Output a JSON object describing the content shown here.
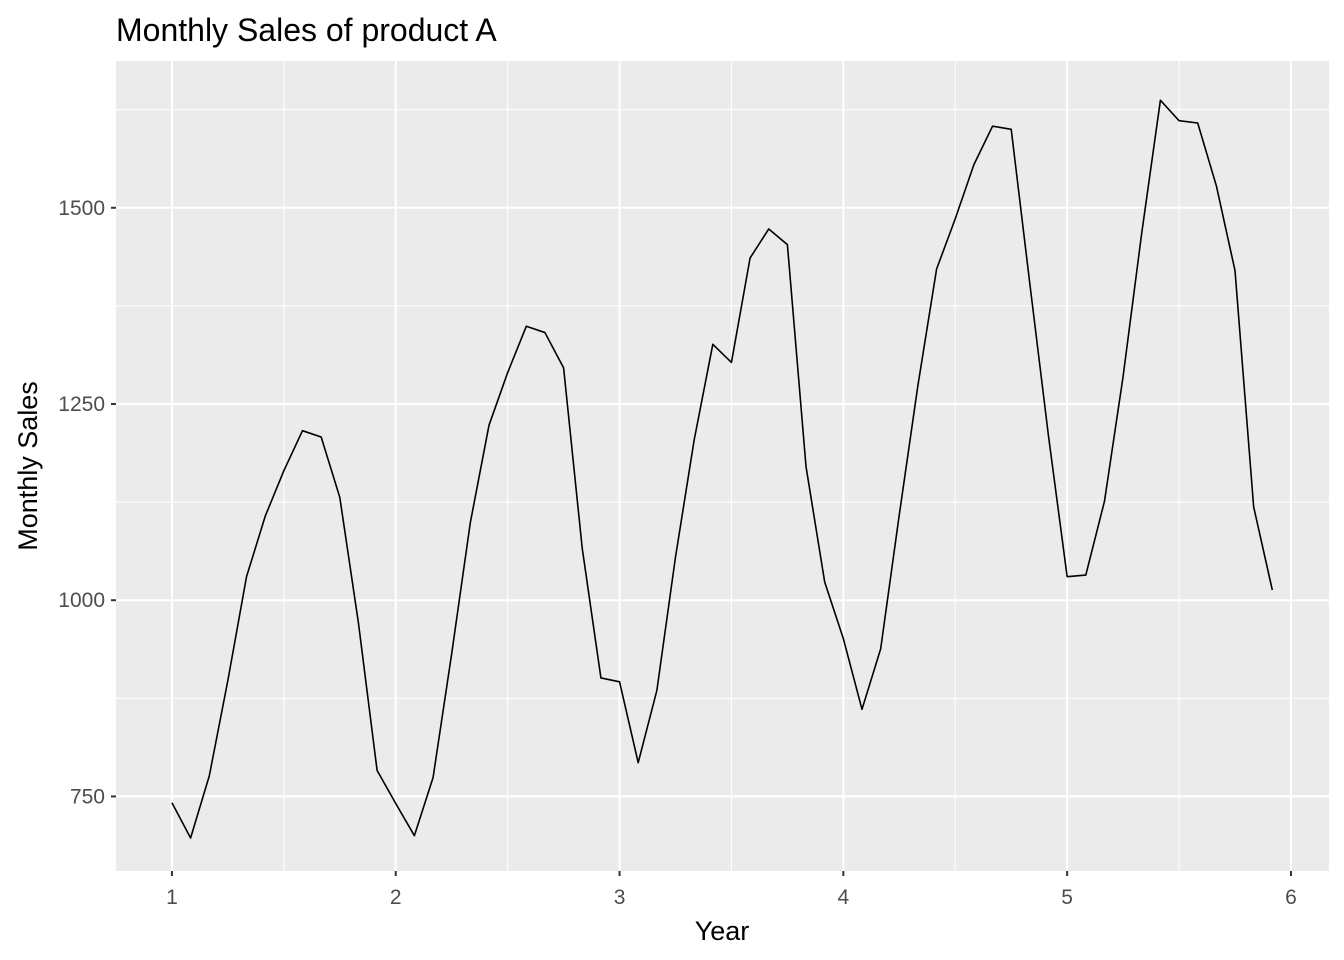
{
  "chart_data": {
    "type": "line",
    "title": "Monthly Sales of product A",
    "xlabel": "Year",
    "ylabel": "Monthly Sales",
    "xlim": [
      0.75,
      6.17
    ],
    "ylim": [
      655,
      1687
    ],
    "x_ticks": [
      1,
      2,
      3,
      4,
      5,
      6
    ],
    "y_ticks": [
      750,
      1000,
      1250,
      1500
    ],
    "grid": true,
    "legend": "none",
    "colors": {
      "panel": "#ebebeb",
      "grid": "#ffffff",
      "line": "#000000",
      "tick_text": "#4d4d4d",
      "tick_mark": "#333333"
    },
    "series": [
      {
        "x": [
          1.0,
          1.0833,
          1.1667,
          1.25,
          1.3333,
          1.4167,
          1.5,
          1.5833,
          1.6667,
          1.75,
          1.8333,
          1.9167,
          2.0,
          2.0833,
          2.1667,
          2.25,
          2.3333,
          2.4167,
          2.5,
          2.5833,
          2.6667,
          2.75,
          2.8333,
          2.9167,
          3.0,
          3.0833,
          3.1667,
          3.25,
          3.3333,
          3.4167,
          3.5,
          3.5833,
          3.6667,
          3.75,
          3.8333,
          3.9167,
          4.0,
          4.0833,
          4.1667,
          4.25,
          4.3333,
          4.4167,
          4.5,
          4.5833,
          4.6667,
          4.75,
          4.8333,
          4.9167,
          5.0,
          5.0833,
          5.1667,
          5.25,
          5.3333,
          5.4167,
          5.5,
          5.5833,
          5.6667,
          5.75,
          5.8333,
          5.9167
        ],
        "y": [
          742,
          697,
          776,
          898,
          1030,
          1107,
          1165,
          1216,
          1208,
          1131,
          971,
          783,
          741,
          700,
          774,
          932,
          1099,
          1223,
          1290,
          1349,
          1341,
          1296,
          1066,
          901,
          896,
          793,
          885,
          1055,
          1204,
          1326,
          1303,
          1436,
          1473,
          1453,
          1170,
          1023,
          951,
          861,
          938,
          1109,
          1274,
          1422,
          1486,
          1555,
          1604,
          1600,
          1403,
          1209,
          1030,
          1032,
          1126,
          1285,
          1468,
          1637,
          1611,
          1608,
          1528,
          1420,
          1119,
          1013
        ]
      }
    ]
  }
}
